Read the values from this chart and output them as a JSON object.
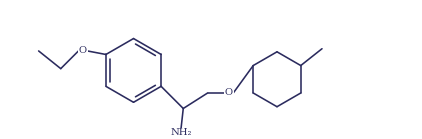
{
  "line_color": "#2b2b5e",
  "bg_color": "#ffffff",
  "label_nh2": "NH₂",
  "label_o1": "O",
  "label_o2": "O",
  "figsize": [
    4.22,
    1.39
  ],
  "dpi": 100
}
